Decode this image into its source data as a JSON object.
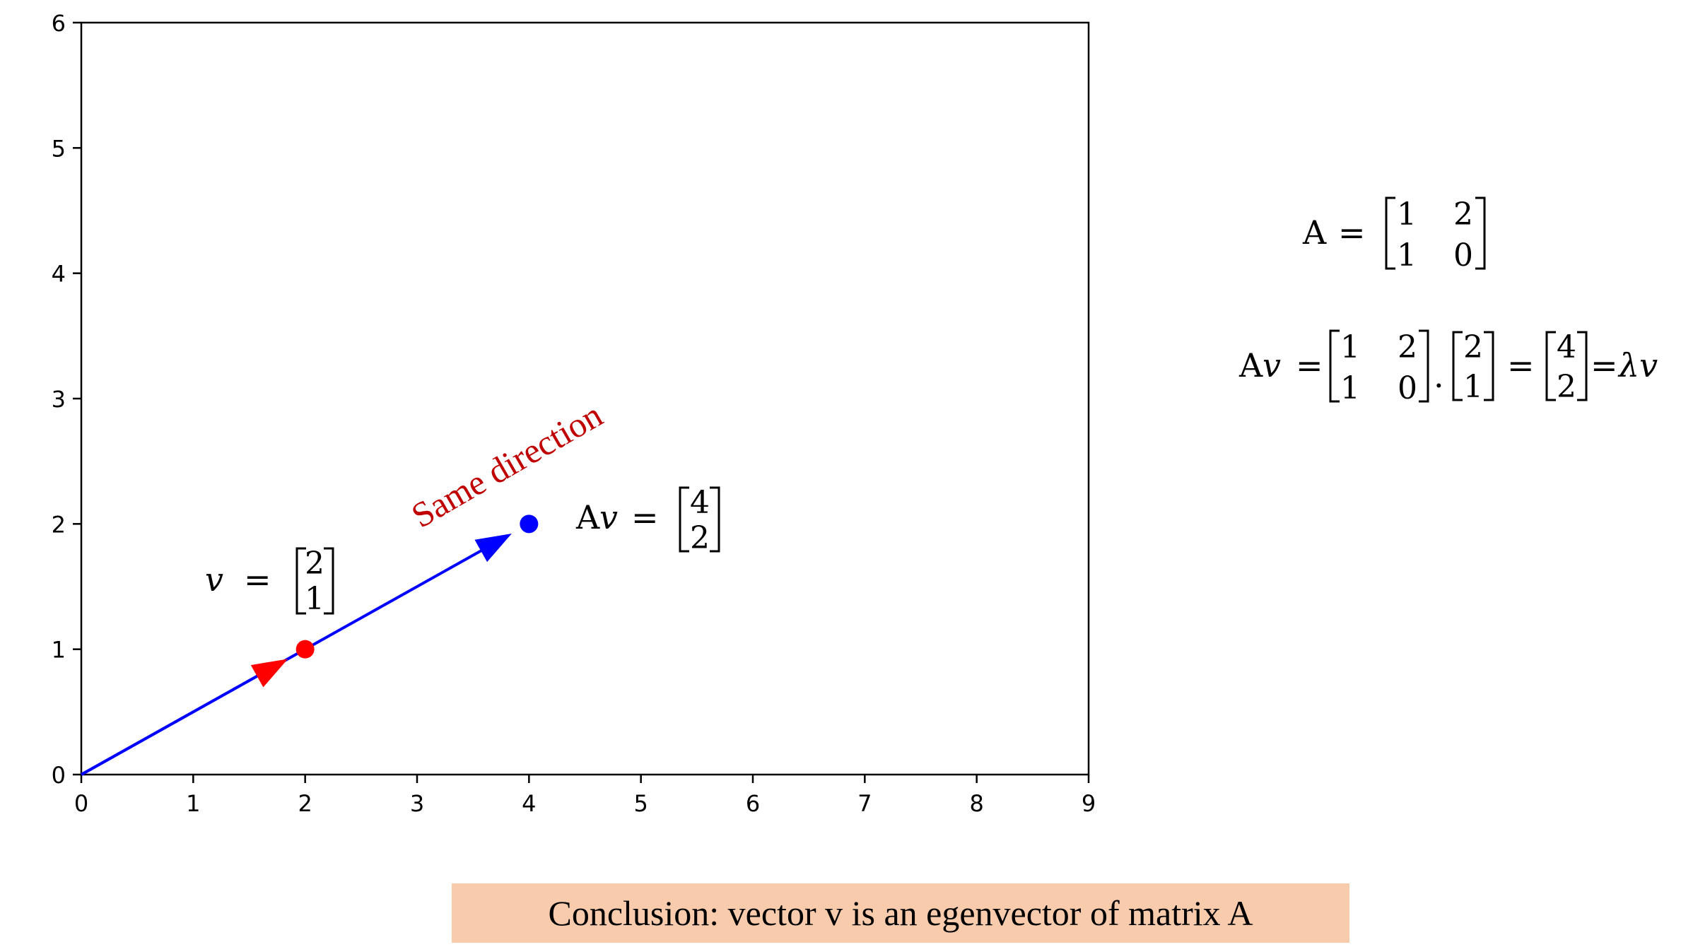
{
  "chart_data": {
    "type": "vector",
    "xlim": [
      0,
      9
    ],
    "ylim": [
      0,
      6
    ],
    "x_ticks": [
      "0",
      "1",
      "2",
      "3",
      "4",
      "5",
      "6",
      "7",
      "8",
      "9"
    ],
    "y_ticks": [
      "0",
      "1",
      "2",
      "3",
      "4",
      "5",
      "6"
    ],
    "grid": false,
    "vectors": [
      {
        "name": "Av",
        "x": 4,
        "y": 2,
        "color": "#0000ff"
      },
      {
        "name": "v",
        "x": 2,
        "y": 1,
        "color": "#ff0000"
      }
    ],
    "annotation": "Same direction",
    "annotation_color": "#c00000"
  },
  "labels": {
    "v_symbol": "v",
    "av_a": "A",
    "av_v": "v",
    "equals": "=",
    "v_vec": [
      "2",
      "1"
    ],
    "av_vec": [
      "4",
      "2"
    ]
  },
  "equations": {
    "matrix_name": "A",
    "matrix": [
      [
        "1",
        "2"
      ],
      [
        "1",
        "0"
      ]
    ],
    "product_vec": [
      "2",
      "1"
    ],
    "result_vec": [
      "4",
      "2"
    ],
    "dot": ".",
    "lambda_v": "λv",
    "lambda_color": "#0070c0"
  },
  "conclusion": "Conclusion: vector v is an egenvector of matrix A"
}
